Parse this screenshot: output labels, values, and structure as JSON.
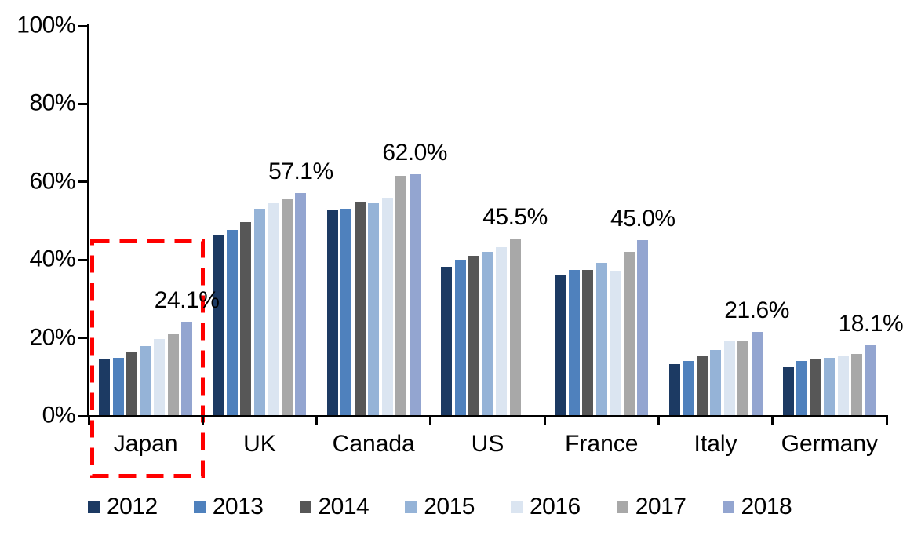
{
  "chart_data": {
    "type": "bar",
    "title": "",
    "categories": [
      "Japan",
      "UK",
      "Canada",
      "US",
      "France",
      "Italy",
      "Germany"
    ],
    "series": [
      {
        "name": "2012",
        "color": "#1C3A63",
        "values": [
          14.7,
          46.2,
          52.8,
          38.2,
          36.3,
          13.3,
          12.5
        ]
      },
      {
        "name": "2013",
        "color": "#4F81BD",
        "values": [
          14.9,
          47.6,
          53.2,
          40.0,
          37.5,
          14.1,
          14.1
        ]
      },
      {
        "name": "2014",
        "color": "#575757",
        "values": [
          16.4,
          49.7,
          54.7,
          41.0,
          37.5,
          15.5,
          14.4
        ]
      },
      {
        "name": "2015",
        "color": "#95B3D7",
        "values": [
          18.0,
          53.2,
          54.5,
          42.0,
          39.2,
          17.0,
          14.9
        ]
      },
      {
        "name": "2016",
        "color": "#DBE5F1",
        "values": [
          19.7,
          54.6,
          56.0,
          43.3,
          37.2,
          19.2,
          15.6
        ]
      },
      {
        "name": "2017",
        "color": "#A8A8A8",
        "values": [
          20.9,
          55.7,
          61.5,
          45.5,
          42.1,
          19.3,
          16.0
        ]
      },
      {
        "name": "2018",
        "color": "#93A5D0",
        "values": [
          24.1,
          57.1,
          62.0,
          null,
          45.0,
          21.6,
          18.1
        ]
      }
    ],
    "data_labels": [
      "24.1%",
      "57.1%",
      "62.0%",
      "45.5%",
      "45.0%",
      "21.6%",
      "18.1%"
    ],
    "y_axis": {
      "tick_labels": [
        "0%",
        "20%",
        "40%",
        "60%",
        "80%",
        "100%"
      ],
      "min": 0,
      "max": 100,
      "step": 20,
      "grid": false
    },
    "legend": {
      "position": "bottom",
      "entries": [
        "2012",
        "2013",
        "2014",
        "2015",
        "2016",
        "2017",
        "2018"
      ]
    },
    "annotations": {
      "highlight": {
        "shape": "dashed-rectangle",
        "color": "#FF0000",
        "category": "Japan"
      }
    }
  }
}
